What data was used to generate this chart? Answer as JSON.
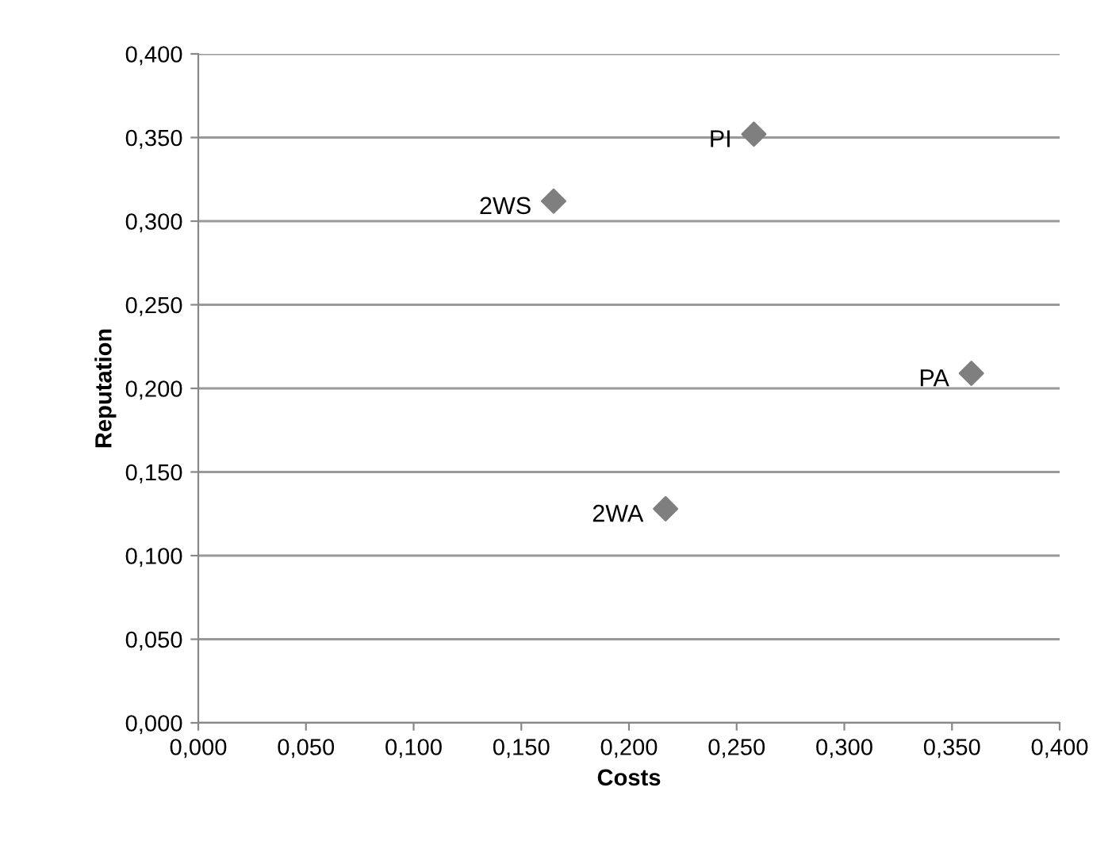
{
  "chart_data": {
    "type": "scatter",
    "xlabel": "Costs",
    "ylabel": "Reputation",
    "x": [
      0.165,
      0.258,
      0.359,
      0.217
    ],
    "series": [
      {
        "color": "#7f7f7f",
        "values": [
          0.312,
          0.352,
          0.209,
          0.128
        ]
      }
    ],
    "annotations": [
      {
        "text": "2WS",
        "x": 0.165,
        "y": 0.312
      },
      {
        "text": "PI",
        "x": 0.258,
        "y": 0.352
      },
      {
        "text": "PA",
        "x": 0.359,
        "y": 0.209
      },
      {
        "text": "2WA",
        "x": 0.217,
        "y": 0.128
      }
    ],
    "xlim": [
      0,
      0.4
    ],
    "ylim": [
      0,
      0.4
    ],
    "xticks": [
      {
        "value": 0,
        "label": "0,000"
      },
      {
        "value": 0.05,
        "label": "0,050"
      },
      {
        "value": 0.1,
        "label": "0,100"
      },
      {
        "value": 0.15,
        "label": "0,150"
      },
      {
        "value": 0.2,
        "label": "0,200"
      },
      {
        "value": 0.25,
        "label": "0,250"
      },
      {
        "value": 0.3,
        "label": "0,300"
      },
      {
        "value": 0.35,
        "label": "0,350"
      },
      {
        "value": 0.4,
        "label": "0,400"
      }
    ],
    "yticks": [
      {
        "value": 0,
        "label": "0,000"
      },
      {
        "value": 0.05,
        "label": "0,050"
      },
      {
        "value": 0.1,
        "label": "0,100"
      },
      {
        "value": 0.15,
        "label": "0,150"
      },
      {
        "value": 0.2,
        "label": "0,200"
      },
      {
        "value": 0.25,
        "label": "0,250"
      },
      {
        "value": 0.3,
        "label": "0,300"
      },
      {
        "value": 0.35,
        "label": "0,350"
      },
      {
        "value": 0.4,
        "label": "0,400"
      }
    ],
    "grid": "y",
    "marker": "diamond"
  }
}
